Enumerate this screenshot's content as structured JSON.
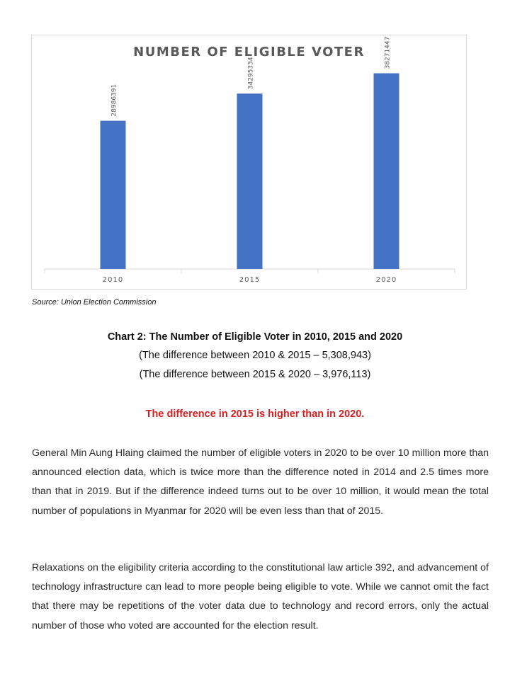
{
  "chart_data": {
    "type": "bar",
    "title": "NUMBER OF ELIGIBLE VOTER",
    "categories": [
      "2010",
      "2015",
      "2020"
    ],
    "values": [
      28986391,
      34295334,
      38271447
    ],
    "data_labels": [
      "28986391",
      "34295334",
      "38271447"
    ],
    "ylim": [
      0,
      40000000
    ],
    "grid": "vertical separators only",
    "legend": "none",
    "bar_color": "#4472c4"
  },
  "source_text": "Source: Union Election Commission",
  "caption": {
    "title": "Chart 2: The Number of Eligible Voter in 2010, 2015 and 2020",
    "line1": "(The difference between 2010 & 2015 – 5,308,943)",
    "line2": "(The difference between 2015 & 2020 – 3,976,113)"
  },
  "highlight": {
    "text": "The difference in 2015 is higher than in 2020.",
    "color": "#d62020"
  },
  "paragraphs": {
    "p1": "General Min Aung Hlaing claimed the number of eligible voters in 2020 to be over 10 million more than announced election data, which is twice more than the difference noted in 2014 and 2.5 times more than that in 2019. But if the difference indeed turns out to be over 10 million, it would mean the total number of populations in Myanmar for 2020 will be even less than that of 2015.",
    "p2": "Relaxations on the eligibility criteria according to the constitutional law article 392, and advancement of technology infrastructure can lead to more people being eligible to vote. While we cannot omit the fact that there may be repetitions of the voter data due to technology and record errors, only the actual number of those who voted are accounted for the election result."
  }
}
